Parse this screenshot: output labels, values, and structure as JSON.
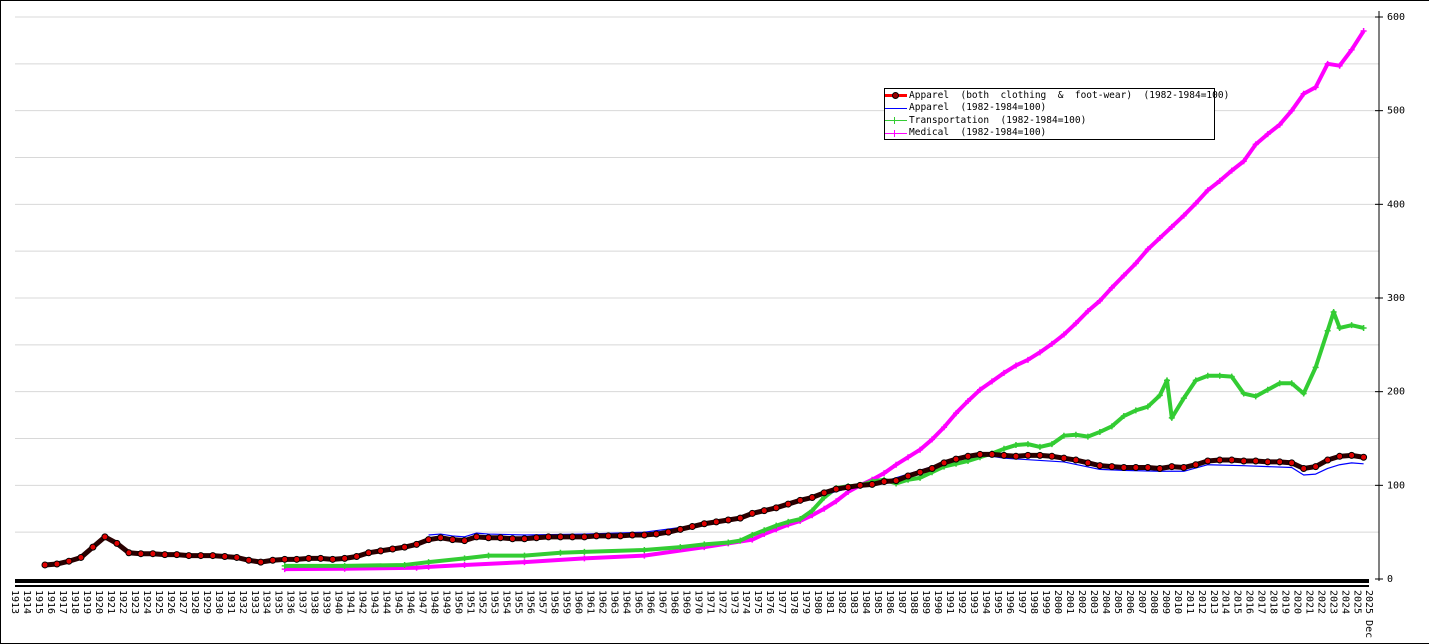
{
  "chart_data": {
    "type": "line",
    "title": "",
    "xlabel": "",
    "ylabel": "",
    "ylim": [
      0,
      600
    ],
    "yticks": [
      "0",
      "100",
      "200",
      "300",
      "400",
      "500",
      "600"
    ],
    "y_axis_position": "right",
    "grid": true,
    "legend_placement": "top-right",
    "xticks": [
      "1913",
      "1914",
      "1915",
      "1916",
      "1917",
      "1918",
      "1919",
      "1920",
      "1921",
      "1922",
      "1923",
      "1924",
      "1925",
      "1926",
      "1927",
      "1928",
      "1929",
      "1930",
      "1931",
      "1932",
      "1933",
      "1934",
      "1935",
      "1936",
      "1937",
      "1938",
      "1939",
      "1940",
      "1941",
      "1942",
      "1943",
      "1944",
      "1945",
      "1946",
      "1947",
      "1948",
      "1949",
      "1950",
      "1951",
      "1952",
      "1953",
      "1954",
      "1955",
      "1956",
      "1957",
      "1958",
      "1959",
      "1960",
      "1961",
      "1962",
      "1963",
      "1964",
      "1965",
      "1966",
      "1967",
      "1968",
      "1969",
      "1970",
      "1971",
      "1972",
      "1973",
      "1974",
      "1975",
      "1976",
      "1977",
      "1978",
      "1979",
      "1980",
      "1981",
      "1982",
      "1983",
      "1984",
      "1985",
      "1986",
      "1987",
      "1988",
      "1989",
      "1990",
      "1991",
      "1992",
      "1993",
      "1994",
      "1995",
      "1996",
      "1997",
      "1998",
      "1999",
      "2000",
      "2001",
      "2002",
      "2003",
      "2004",
      "2005",
      "2006",
      "2007",
      "2008",
      "2009",
      "2010",
      "2011",
      "2012",
      "2013",
      "2014",
      "2015",
      "2016",
      "2017",
      "2018",
      "2019",
      "2020",
      "2021",
      "2022",
      "2023",
      "2024",
      "2025",
      "2025 Dec"
    ],
    "series": [
      {
        "name": "Apparel  (both  clothing  &  foot-wear)  (1982-1984=100)",
        "color": "#ff0000",
        "marker": "circle",
        "x": [
          1915,
          1916,
          1917,
          1918,
          1919,
          1920,
          1921,
          1922,
          1923,
          1924,
          1925,
          1926,
          1927,
          1928,
          1929,
          1930,
          1931,
          1932,
          1933,
          1934,
          1935,
          1936,
          1937,
          1938,
          1939,
          1940,
          1941,
          1942,
          1943,
          1944,
          1945,
          1946,
          1947,
          1948,
          1949,
          1950,
          1951,
          1952,
          1953,
          1954,
          1955,
          1956,
          1957,
          1958,
          1959,
          1960,
          1961,
          1962,
          1963,
          1964,
          1965,
          1966,
          1967,
          1968,
          1969,
          1970,
          1971,
          1972,
          1973,
          1974,
          1975,
          1976,
          1977,
          1978,
          1979,
          1980,
          1981,
          1982,
          1983,
          1984,
          1985,
          1986,
          1987,
          1988,
          1989,
          1990,
          1991,
          1992,
          1993,
          1994,
          1995,
          1996,
          1997,
          1998,
          1999,
          2000,
          2001,
          2002,
          2003,
          2004,
          2005,
          2006,
          2007,
          2008,
          2009,
          2010,
          2011,
          2012,
          2013,
          2014,
          2015,
          2016,
          2017,
          2018,
          2019,
          2020,
          2021,
          2022,
          2023,
          2024,
          2025
        ],
        "y": [
          15,
          16,
          19,
          23,
          34,
          45,
          38,
          28,
          27,
          27,
          26,
          26,
          25,
          25,
          25,
          24,
          23,
          20,
          18,
          20,
          21,
          21,
          22,
          22,
          21,
          22,
          24,
          28,
          30,
          32,
          34,
          37,
          42,
          44,
          42,
          41,
          45,
          44,
          44,
          43,
          43,
          44,
          45,
          45,
          45,
          45,
          46,
          46,
          46,
          47,
          47,
          48,
          50,
          53,
          56,
          59,
          61,
          63,
          65,
          70,
          73,
          76,
          80,
          84,
          87,
          92,
          96,
          98,
          100,
          101,
          104,
          105,
          110,
          114,
          118,
          124,
          128,
          131,
          133,
          133,
          132,
          131,
          132,
          132,
          131,
          129,
          127,
          124,
          121,
          120,
          119,
          119,
          119,
          118,
          120,
          119,
          122,
          126,
          127,
          127,
          126,
          126,
          125,
          125,
          124,
          118,
          120,
          127,
          131,
          132,
          130
        ]
      },
      {
        "name": "Apparel  (1982-1984=100)",
        "color": "#0000ff",
        "marker": "none",
        "x": [
          1947,
          1948,
          1949,
          1950,
          1951,
          1952,
          1955,
          1960,
          1965,
          1968,
          1970,
          1973,
          1975,
          1978,
          1980,
          1983,
          1985,
          1990,
          1993,
          1995,
          2000,
          2003,
          2005,
          2008,
          2010,
          2012,
          2015,
          2019,
          2020,
          2021,
          2022,
          2023,
          2024,
          2025
        ],
        "y": [
          47,
          48,
          46,
          45,
          49,
          48,
          47,
          48,
          50,
          55,
          59,
          65,
          72,
          82,
          90,
          100,
          104,
          124,
          133,
          129,
          125,
          117,
          116,
          115,
          115,
          122,
          121,
          119,
          111,
          112,
          118,
          122,
          124,
          123
        ]
      },
      {
        "name": "Transportation  (1982-1984=100)",
        "color": "#33cc33",
        "marker": "plus",
        "x": [
          1935,
          1940,
          1945,
          1947,
          1950,
          1952,
          1955,
          1958,
          1960,
          1965,
          1968,
          1970,
          1972,
          1973,
          1974,
          1975,
          1976,
          1977,
          1978,
          1979,
          1980,
          1981,
          1982,
          1983,
          1984,
          1985,
          1986,
          1987,
          1988,
          1989,
          1990,
          1991,
          1992,
          1993,
          1994,
          1995,
          1996,
          1997,
          1998,
          1999,
          2000,
          2001,
          2002,
          2003,
          2004,
          2005,
          2006,
          2007,
          2008,
          2008.6,
          2009,
          2010,
          2011,
          2012,
          2013,
          2014,
          2015,
          2016,
          2017,
          2018,
          2019,
          2020,
          2021,
          2022,
          2022.5,
          2023,
          2024,
          2025
        ],
        "y": [
          14,
          14,
          15,
          18,
          22,
          25,
          25,
          28,
          29,
          31,
          34,
          37,
          39,
          41,
          47,
          52,
          57,
          61,
          64,
          73,
          87,
          97,
          99,
          100,
          104,
          106,
          102,
          106,
          108,
          114,
          120,
          123,
          126,
          130,
          134,
          139,
          143,
          144,
          141,
          144,
          153,
          154,
          152,
          157,
          163,
          174,
          180,
          184,
          196,
          212,
          172,
          193,
          212,
          217,
          217,
          216,
          198,
          195,
          202,
          209,
          209,
          198,
          226,
          265,
          285,
          268,
          271,
          268
        ]
      },
      {
        "name": "Medical  (1982-1984=100)",
        "color": "#ff00ff",
        "marker": "plus",
        "x": [
          1935,
          1940,
          1946,
          1947,
          1950,
          1955,
          1960,
          1965,
          1970,
          1972,
          1974,
          1975,
          1976,
          1977,
          1978,
          1979,
          1980,
          1981,
          1982,
          1983,
          1984,
          1985,
          1986,
          1987,
          1988,
          1989,
          1990,
          1991,
          1992,
          1993,
          1994,
          1995,
          1996,
          1997,
          1998,
          1999,
          2000,
          2001,
          2002,
          2003,
          2004,
          2005,
          2006,
          2007,
          2008,
          2009,
          2010,
          2011,
          2012,
          2013,
          2014,
          2015,
          2016,
          2017,
          2018,
          2019,
          2020,
          2021,
          2022,
          2023,
          2024,
          2025
        ],
        "y": [
          10.5,
          11,
          12,
          13,
          15,
          18,
          22,
          25,
          34,
          38,
          42,
          48,
          53,
          58,
          62,
          68,
          75,
          83,
          93,
          100,
          106,
          113,
          122,
          130,
          138,
          149,
          162,
          177,
          190,
          202,
          211,
          220,
          228,
          234,
          242,
          251,
          261,
          273,
          286,
          297,
          311,
          324,
          337,
          352,
          364,
          376,
          388,
          401,
          415,
          425,
          436,
          446,
          464,
          475,
          485,
          500,
          518,
          525,
          550,
          548,
          565,
          585
        ]
      }
    ]
  }
}
